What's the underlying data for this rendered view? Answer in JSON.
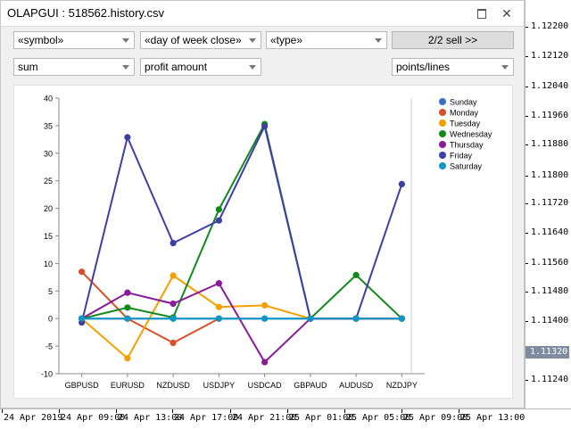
{
  "window": {
    "title": "OLAPGUI : 518562.history.csv",
    "restore_glyph": "",
    "close_glyph": "✕"
  },
  "controls": {
    "row1": {
      "symbol": "«symbol»",
      "day_of_week": "«day of week close»",
      "type": "«type»",
      "sell_button": "2/2 sell >>"
    },
    "row2": {
      "aggregator": "sum",
      "field": "profit amount",
      "graph_type": "points/lines"
    }
  },
  "price_axis": {
    "ticks": [
      "1.12200",
      "1.12120",
      "1.12040",
      "1.11960",
      "1.11880",
      "1.11800",
      "1.11720",
      "1.11640",
      "1.11560",
      "1.11480",
      "1.11400",
      "1.11240"
    ],
    "current": "1.11320"
  },
  "time_axis": {
    "ticks": [
      "24 Apr 2019",
      "24 Apr 09:00",
      "24 Apr 13:00",
      "24 Apr 17:00",
      "24 Apr 21:00",
      "25 Apr 01:00",
      "25 Apr 05:00",
      "25 Apr 09:00",
      "25 Apr 13:00"
    ]
  },
  "chart_data": {
    "type": "line",
    "categories": [
      "GBPUSD",
      "EURUSD",
      "NZDUSD",
      "USDJPY",
      "USDCAD",
      "GBPAUD",
      "AUDUSD",
      "NZDJPY"
    ],
    "ylim": [
      -10,
      40
    ],
    "yticks": [
      -10,
      -5,
      0,
      5,
      10,
      15,
      20,
      25,
      30,
      35,
      40
    ],
    "legend_position": "top-right",
    "grid": false,
    "series": [
      {
        "name": "Sunday",
        "color": "#3a6fc4",
        "values": [
          0,
          0,
          0,
          0,
          0,
          0,
          0,
          0
        ]
      },
      {
        "name": "Monday",
        "color": "#d8502a",
        "values": [
          8.5,
          0,
          -4.4,
          0,
          null,
          null,
          null,
          null
        ]
      },
      {
        "name": "Tuesday",
        "color": "#f5a000",
        "values": [
          0,
          -7.2,
          7.8,
          2.1,
          2.4,
          0,
          0,
          0
        ]
      },
      {
        "name": "Wednesday",
        "color": "#12891c",
        "values": [
          0,
          2,
          0.2,
          19.8,
          35.3,
          0,
          7.9,
          0
        ]
      },
      {
        "name": "Thursday",
        "color": "#8a1a9a",
        "values": [
          0,
          4.7,
          2.7,
          6.4,
          -7.9,
          0,
          0,
          0
        ]
      },
      {
        "name": "Friday",
        "color": "#3d3fa6",
        "values": [
          -0.7,
          32.9,
          13.7,
          17.8,
          34.9,
          0,
          0,
          24.4
        ]
      },
      {
        "name": "Saturday",
        "color": "#1096c4",
        "values": [
          0,
          0,
          0,
          0,
          0,
          0,
          0,
          0
        ]
      }
    ]
  }
}
